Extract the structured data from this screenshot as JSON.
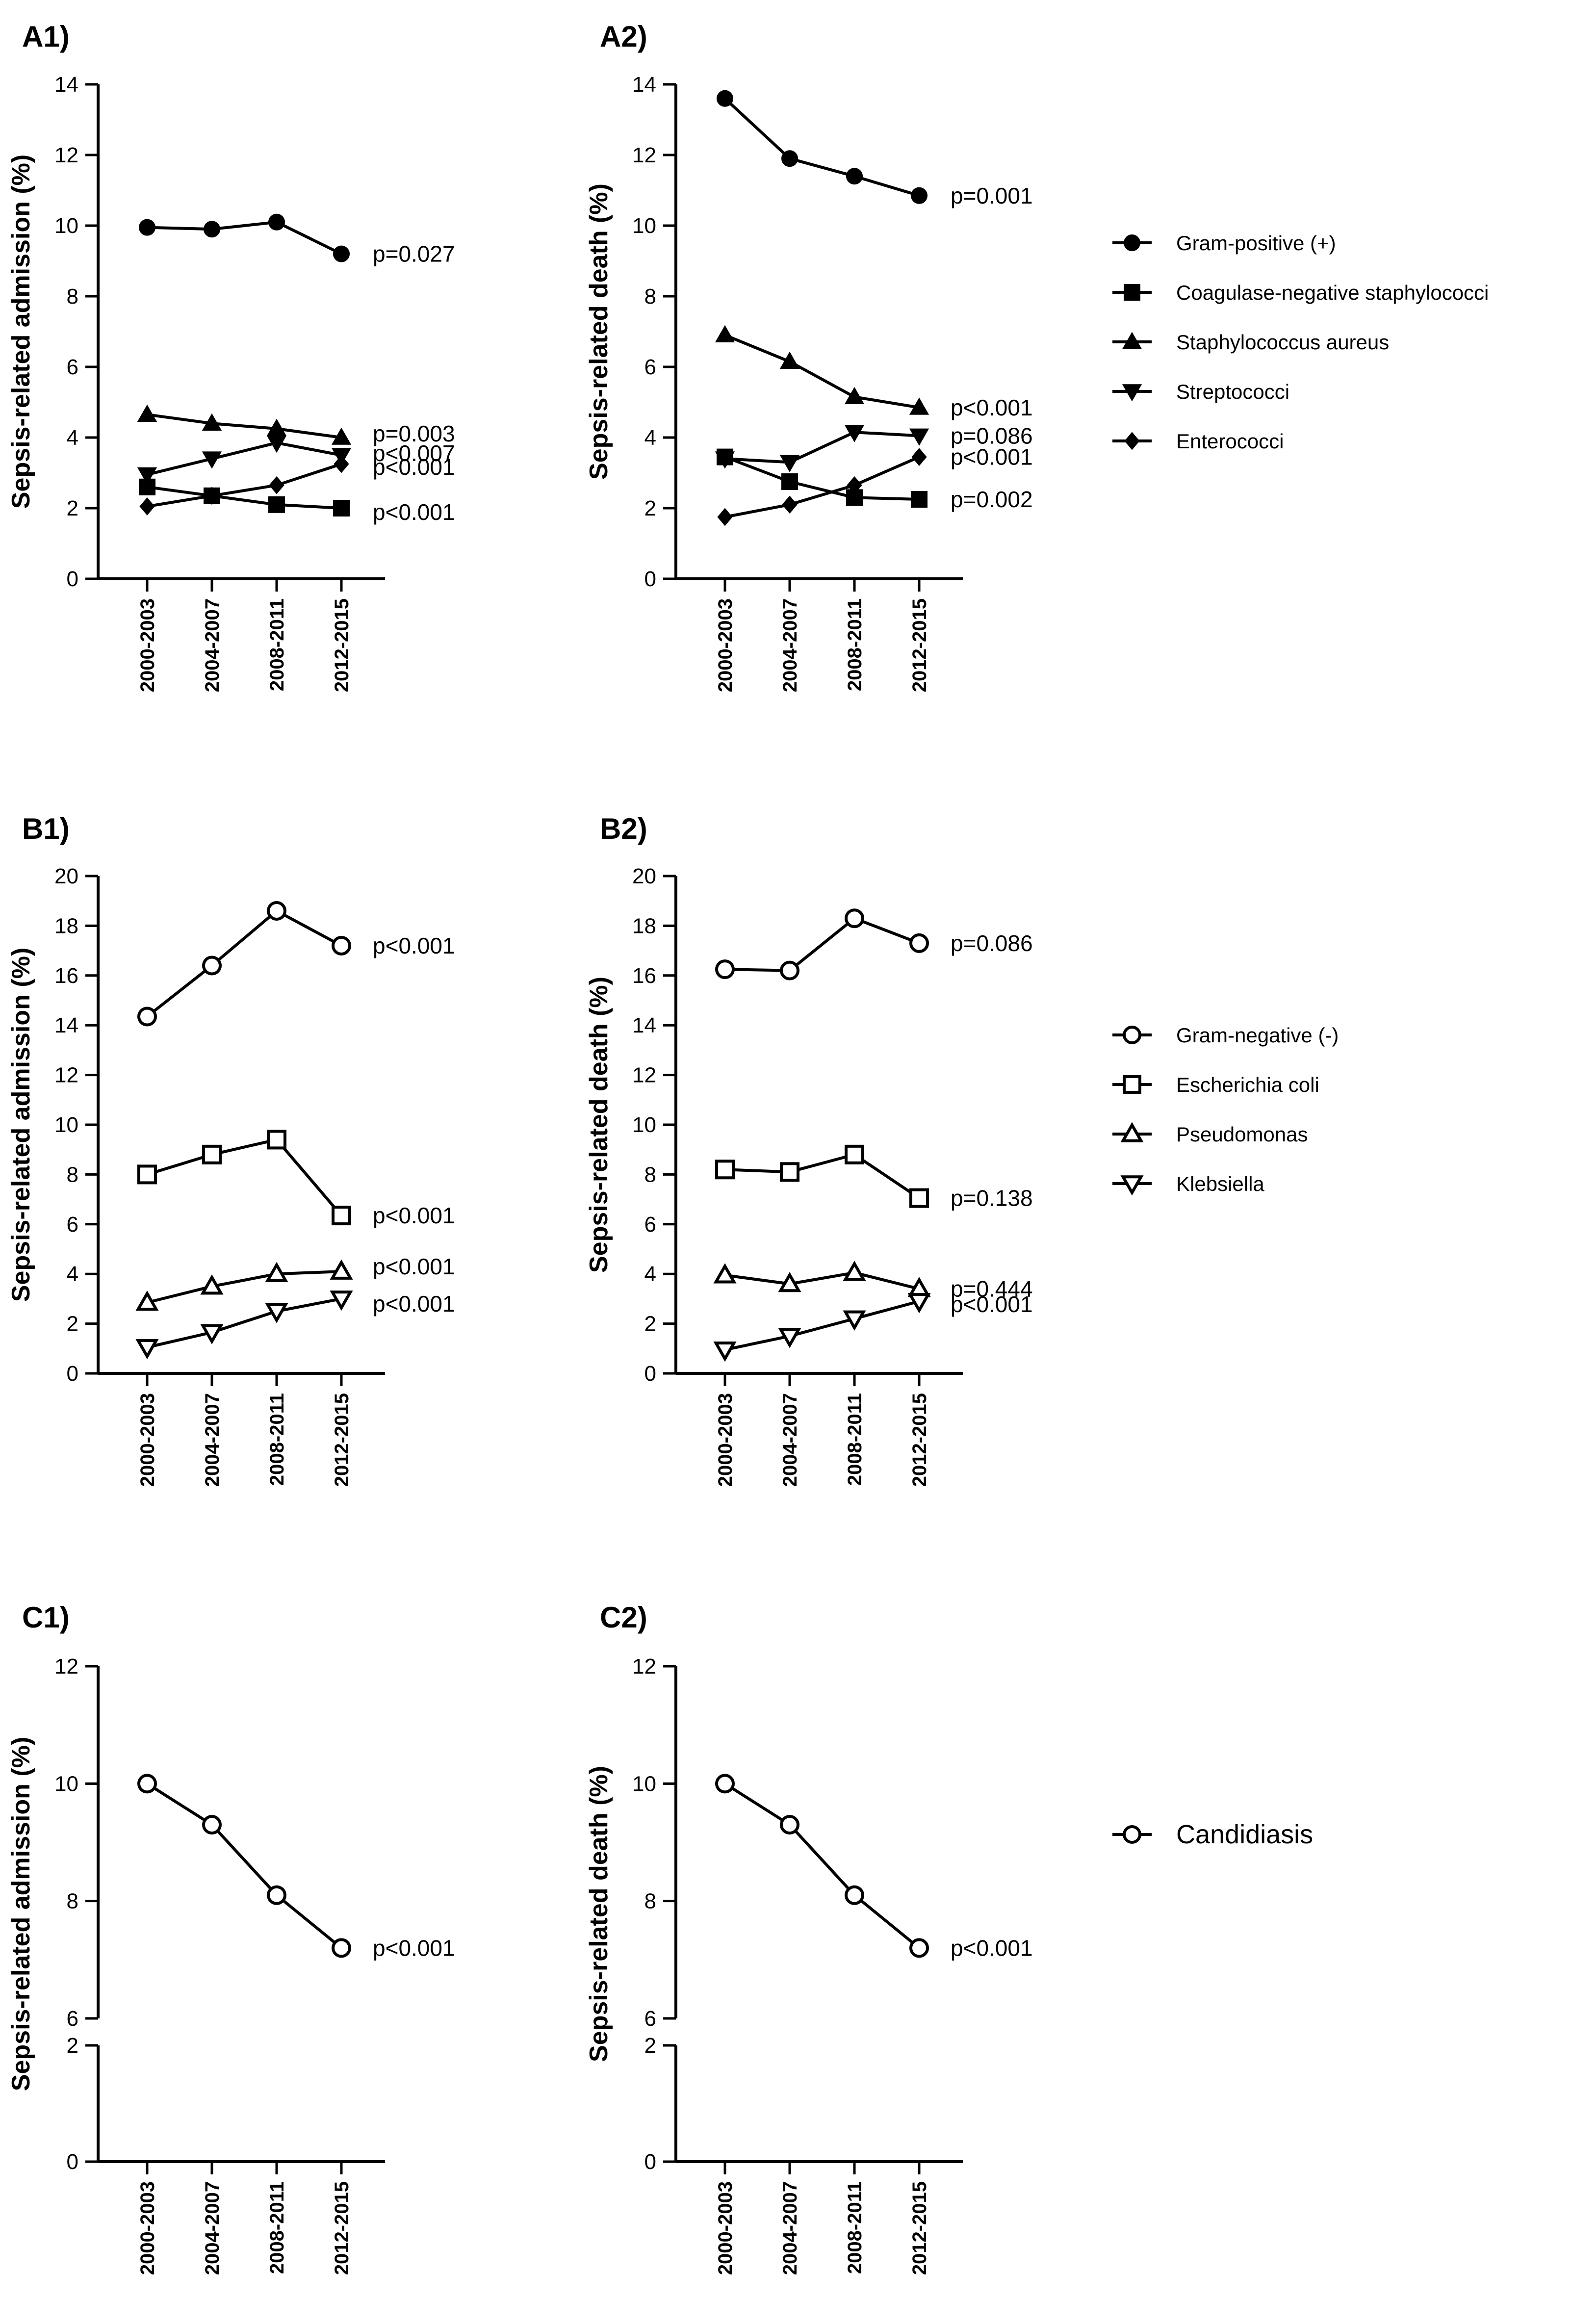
{
  "chart_data": [
    {
      "id": "A1",
      "type": "line",
      "panel_label": "A1)",
      "ylabel": "Sepsis-related admission (%)",
      "ylim": [
        0,
        14
      ],
      "yticks": [
        0,
        2,
        4,
        6,
        8,
        10,
        12,
        14
      ],
      "categories": [
        "2000-2003",
        "2004-2007",
        "2008-2011",
        "2012-2015"
      ],
      "series": [
        {
          "name": "Gram-positive (+)",
          "marker": "filled-circle",
          "values": [
            9.95,
            9.9,
            10.1,
            9.2
          ],
          "pvalue": "p=0.027"
        },
        {
          "name": "Staphylococcus aureus",
          "marker": "filled-triangle-up",
          "values": [
            4.65,
            4.4,
            4.25,
            4.0
          ],
          "pvalue": "p=0.003"
        },
        {
          "name": "Streptococci",
          "marker": "filled-triangle-down",
          "values": [
            2.95,
            3.4,
            3.85,
            3.5
          ],
          "pvalue": "p<0.007"
        },
        {
          "name": "Enterococci",
          "marker": "filled-diamond",
          "values": [
            2.05,
            2.35,
            2.65,
            3.25
          ],
          "pvalue": "p<0.001"
        },
        {
          "name": "Coagulase-negative staphylococci",
          "marker": "filled-square",
          "values": [
            2.6,
            2.35,
            2.1,
            2.0
          ],
          "pvalue": "p<0.001"
        }
      ]
    },
    {
      "id": "A2",
      "type": "line",
      "panel_label": "A2)",
      "ylabel": "Sepsis-related death (%)",
      "ylim": [
        0,
        14
      ],
      "yticks": [
        0,
        2,
        4,
        6,
        8,
        10,
        12,
        14
      ],
      "categories": [
        "2000-2003",
        "2004-2007",
        "2008-2011",
        "2012-2015"
      ],
      "series": [
        {
          "name": "Gram-positive (+)",
          "marker": "filled-circle",
          "values": [
            13.6,
            11.9,
            11.4,
            10.85
          ],
          "pvalue": "p=0.001"
        },
        {
          "name": "Staphylococcus aureus",
          "marker": "filled-triangle-up",
          "values": [
            6.9,
            6.15,
            5.15,
            4.85
          ],
          "pvalue": "p<0.001"
        },
        {
          "name": "Streptococci",
          "marker": "filled-triangle-down",
          "values": [
            3.4,
            3.3,
            4.15,
            4.05
          ],
          "pvalue": "p=0.086"
        },
        {
          "name": "Enterococci",
          "marker": "filled-diamond",
          "values": [
            1.75,
            2.1,
            2.65,
            3.45
          ],
          "pvalue": "p<0.001"
        },
        {
          "name": "Coagulase-negative staphylococci",
          "marker": "filled-square",
          "values": [
            3.45,
            2.75,
            2.3,
            2.25
          ],
          "pvalue": "p=0.002"
        }
      ]
    },
    {
      "id": "B1",
      "type": "line",
      "panel_label": "B1)",
      "ylabel": "Sepsis-related admission (%)",
      "ylim": [
        0,
        20
      ],
      "yticks": [
        0,
        2,
        4,
        6,
        8,
        10,
        12,
        14,
        16,
        18,
        20
      ],
      "categories": [
        "2000-2003",
        "2004-2007",
        "2008-2011",
        "2012-2015"
      ],
      "series": [
        {
          "name": "Gram-negative (-)",
          "marker": "open-circle",
          "values": [
            14.35,
            16.4,
            18.6,
            17.2
          ],
          "pvalue": "p<0.001"
        },
        {
          "name": "Escherichia coli",
          "marker": "open-square",
          "values": [
            8.0,
            8.8,
            9.4,
            6.35
          ],
          "pvalue": "p<0.001"
        },
        {
          "name": "Pseudomonas",
          "marker": "open-triangle-up",
          "values": [
            2.85,
            3.5,
            4.0,
            4.1
          ],
          "pvalue": "p<0.001"
        },
        {
          "name": "Klebsiella",
          "marker": "open-triangle-down",
          "values": [
            1.05,
            1.65,
            2.5,
            3.0
          ],
          "pvalue": "p<0.001"
        }
      ]
    },
    {
      "id": "B2",
      "type": "line",
      "panel_label": "B2)",
      "ylabel": "Sepsis-related death (%)",
      "ylim": [
        0,
        20
      ],
      "yticks": [
        0,
        2,
        4,
        6,
        8,
        10,
        12,
        14,
        16,
        18,
        20
      ],
      "categories": [
        "2000-2003",
        "2004-2007",
        "2008-2011",
        "2012-2015"
      ],
      "series": [
        {
          "name": "Gram-negative (-)",
          "marker": "open-circle",
          "values": [
            16.25,
            16.2,
            18.3,
            17.3
          ],
          "pvalue": "p=0.086"
        },
        {
          "name": "Escherichia coli",
          "marker": "open-square",
          "values": [
            8.2,
            8.1,
            8.8,
            7.05
          ],
          "pvalue": "p=0.138"
        },
        {
          "name": "Pseudomonas",
          "marker": "open-triangle-up",
          "values": [
            3.95,
            3.6,
            4.05,
            3.4
          ],
          "pvalue": "p=0.444"
        },
        {
          "name": "Klebsiella",
          "marker": "open-triangle-down",
          "values": [
            0.95,
            1.5,
            2.2,
            2.9
          ],
          "pvalue": "p<0.001"
        }
      ]
    },
    {
      "id": "C1",
      "type": "line",
      "panel_label": "C1)",
      "ylabel": "Sepsis-related admission (%)",
      "broken_axis": true,
      "ylim_lower": [
        0,
        2
      ],
      "ylim_upper": [
        6,
        12
      ],
      "yticks_lower": [
        0,
        2
      ],
      "yticks_upper": [
        6,
        8,
        10,
        12
      ],
      "categories": [
        "2000-2003",
        "2004-2007",
        "2008-2011",
        "2012-2015"
      ],
      "series": [
        {
          "name": "Candidiasis",
          "marker": "open-circle",
          "values": [
            10.0,
            9.3,
            8.1,
            7.2
          ],
          "pvalue": "p<0.001"
        }
      ]
    },
    {
      "id": "C2",
      "type": "line",
      "panel_label": "C2)",
      "ylabel": "Sepsis-related death (%)",
      "broken_axis": true,
      "ylim_lower": [
        0,
        2
      ],
      "ylim_upper": [
        6,
        12
      ],
      "yticks_lower": [
        0,
        2
      ],
      "yticks_upper": [
        6,
        8,
        10,
        12
      ],
      "categories": [
        "2000-2003",
        "2004-2007",
        "2008-2011",
        "2012-2015"
      ],
      "series": [
        {
          "name": "Candidiasis",
          "marker": "open-circle",
          "values": [
            10.0,
            9.3,
            8.1,
            7.2
          ],
          "pvalue": "p<0.001"
        }
      ]
    }
  ],
  "legends": [
    {
      "id": "legend-gram-positive",
      "entries": [
        {
          "name": "Gram-positive (+)",
          "marker": "filled-circle"
        },
        {
          "name": "Coagulase-negative staphylococci",
          "marker": "filled-square"
        },
        {
          "name": "Staphylococcus aureus",
          "marker": "filled-triangle-up"
        },
        {
          "name": "Streptococci",
          "marker": "filled-triangle-down"
        },
        {
          "name": "Enterococci",
          "marker": "filled-diamond"
        }
      ]
    },
    {
      "id": "legend-gram-negative",
      "entries": [
        {
          "name": "Gram-negative (-)",
          "marker": "open-circle"
        },
        {
          "name": "Escherichia coli",
          "marker": "open-square"
        },
        {
          "name": "Pseudomonas",
          "marker": "open-triangle-up"
        },
        {
          "name": "Klebsiella",
          "marker": "open-triangle-down"
        }
      ]
    },
    {
      "id": "legend-candida",
      "entries": [
        {
          "name": "Candidiasis",
          "marker": "open-circle"
        }
      ]
    }
  ]
}
